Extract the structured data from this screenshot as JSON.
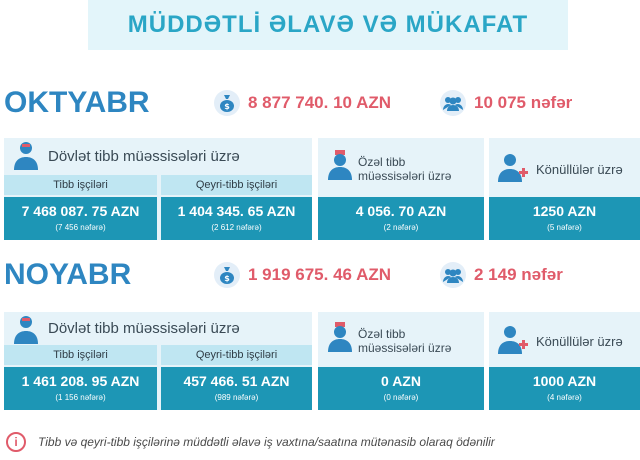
{
  "title": "MÜDDƏTLİ ƏLAVƏ VƏ MÜKAFAT",
  "months": [
    {
      "name": "OKTYABR",
      "total_amount": "8 877 740. 10 AZN",
      "total_people": "10 075 nəfər",
      "state": {
        "label": "Dövlət tibb müəssisələri üzrə",
        "medical": {
          "header": "Tibb işçiləri",
          "amount": "7 468 087. 75 AZN",
          "count": "(7 456 nəfərə)"
        },
        "nonmedical": {
          "header": "Qeyri-tibb işçiləri",
          "amount": "1 404 345. 65 AZN",
          "count": "(2 612 nəfərə)"
        }
      },
      "private": {
        "label_line1": "Özəl tibb",
        "label_line2": "müəssisələri üzrə",
        "amount": "4 056. 70 AZN",
        "count": "(2 nəfərə)"
      },
      "volunteers": {
        "label": "Könüllülər üzrə",
        "amount": "1250 AZN",
        "count": "(5 nəfərə)"
      }
    },
    {
      "name": "NOYABR",
      "total_amount": "1 919 675. 46 AZN",
      "total_people": "2 149 nəfər",
      "state": {
        "label": "Dövlət tibb müəssisələri üzrə",
        "medical": {
          "header": "Tibb işçiləri",
          "amount": "1 461 208. 95 AZN",
          "count": "(1 156 nəfərə)"
        },
        "nonmedical": {
          "header": "Qeyri-tibb işçiləri",
          "amount": "457 466. 51 AZN",
          "count": "(989 nəfərə)"
        }
      },
      "private": {
        "label_line1": "Özəl tibb",
        "label_line2": "müəssisələri üzrə",
        "amount": "0 AZN",
        "count": "(0 nəfərə)"
      },
      "volunteers": {
        "label": "Könüllülər üzrə",
        "amount": "1000 AZN",
        "count": "(4 nəfərə)"
      }
    }
  ],
  "footer": {
    "info_glyph": "i",
    "text": "Tibb və qeyri-tibb işçilərinə müddətli əlavə iş vaxtına/saatına mütənasib olaraq ödənilir"
  },
  "colors": {
    "accent": "#2aa6c6",
    "month": "#2e86c1",
    "highlight": "#e05b6a",
    "cell": "#1d96b5",
    "panel": "#e6f3f9"
  },
  "icons": [
    "money-bag-icon",
    "people-group-icon",
    "doctor-icon",
    "volunteer-icon",
    "info-icon"
  ]
}
